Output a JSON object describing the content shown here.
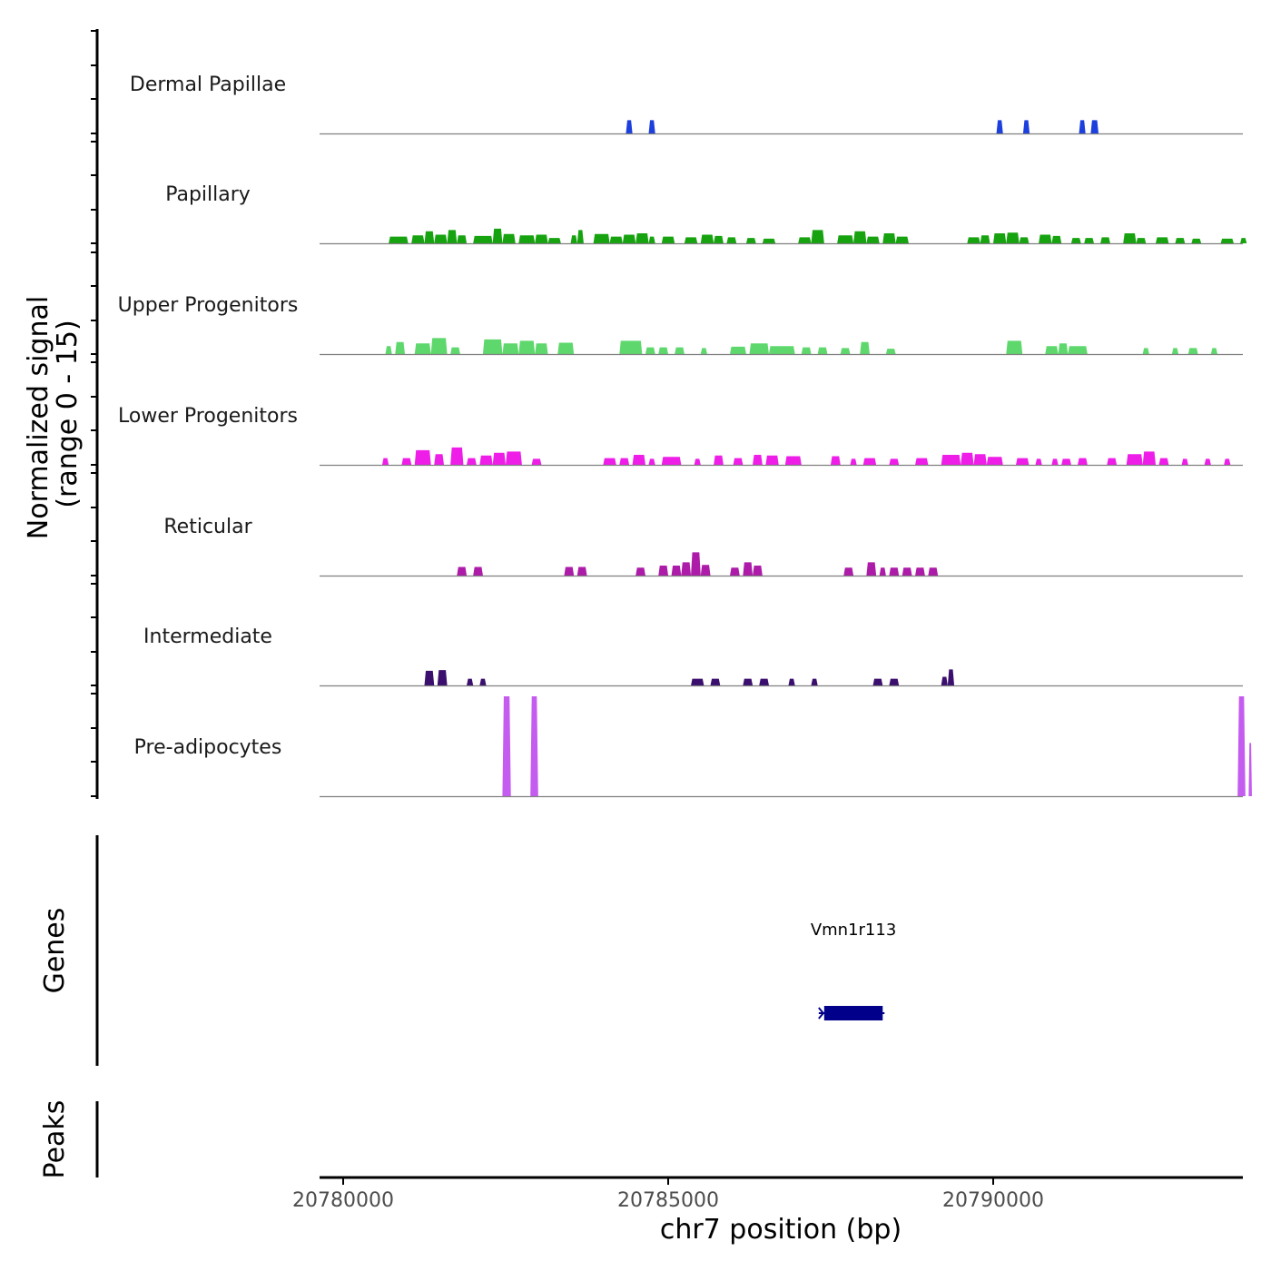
{
  "chart_data": {
    "type": "area",
    "title": "",
    "chromosome": "chr7",
    "xlabel": "chr7 position (bp)",
    "ylabel_line1": "Normalized signal",
    "ylabel_line2": "(range 0 - 15)",
    "signal_range": [
      0,
      15
    ],
    "xlim": [
      20780000,
      20794300
    ],
    "x_ticks": [
      20780000,
      20785000,
      20790000
    ],
    "x_tick_labels": [
      "20780000",
      "20785000",
      "20790000"
    ],
    "panels": {
      "genes_label": "Genes",
      "peaks_label": "Peaks"
    },
    "tracks": [
      {
        "name": "Dermal Papillae",
        "color": "#1c3fdd",
        "peaks": [
          [
            20784350,
            20784450,
            2.0
          ],
          [
            20784700,
            20784800,
            2.0
          ],
          [
            20790050,
            20790150,
            2.0
          ],
          [
            20790460,
            20790560,
            2.0
          ],
          [
            20791320,
            20791420,
            2.0
          ],
          [
            20791500,
            20791620,
            2.0
          ]
        ]
      },
      {
        "name": "Papillary",
        "color": "#16a30f",
        "peaks": [
          [
            20780700,
            20781000,
            1.0
          ],
          [
            20781050,
            20781250,
            1.2
          ],
          [
            20781250,
            20781400,
            1.8
          ],
          [
            20781400,
            20781600,
            1.3
          ],
          [
            20781600,
            20781750,
            2.0
          ],
          [
            20781750,
            20781900,
            1.2
          ],
          [
            20782000,
            20782300,
            1.1
          ],
          [
            20782300,
            20782450,
            2.2
          ],
          [
            20782450,
            20782650,
            1.4
          ],
          [
            20782700,
            20782950,
            1.2
          ],
          [
            20782950,
            20783150,
            1.3
          ],
          [
            20783150,
            20783350,
            0.8
          ],
          [
            20783500,
            20783600,
            1.2
          ],
          [
            20783600,
            20783700,
            2.0
          ],
          [
            20783850,
            20784100,
            1.4
          ],
          [
            20784100,
            20784300,
            1.0
          ],
          [
            20784300,
            20784500,
            1.3
          ],
          [
            20784500,
            20784700,
            1.5
          ],
          [
            20784700,
            20784800,
            1.0
          ],
          [
            20784900,
            20785100,
            1.0
          ],
          [
            20785250,
            20785450,
            0.9
          ],
          [
            20785500,
            20785700,
            1.3
          ],
          [
            20785700,
            20785850,
            1.1
          ],
          [
            20785900,
            20786050,
            0.9
          ],
          [
            20786200,
            20786350,
            0.8
          ],
          [
            20786450,
            20786650,
            0.7
          ],
          [
            20787000,
            20787200,
            0.9
          ],
          [
            20787200,
            20787400,
            2.0
          ],
          [
            20787600,
            20787850,
            1.2
          ],
          [
            20787850,
            20788050,
            1.8
          ],
          [
            20788050,
            20788250,
            1.0
          ],
          [
            20788300,
            20788500,
            1.5
          ],
          [
            20788500,
            20788700,
            1.0
          ],
          [
            20789600,
            20789800,
            0.9
          ],
          [
            20789800,
            20789950,
            1.2
          ],
          [
            20790000,
            20790200,
            1.5
          ],
          [
            20790200,
            20790400,
            1.6
          ],
          [
            20790400,
            20790550,
            0.9
          ],
          [
            20790700,
            20790900,
            1.3
          ],
          [
            20790900,
            20791050,
            1.1
          ],
          [
            20791200,
            20791350,
            0.8
          ],
          [
            20791400,
            20791550,
            0.8
          ],
          [
            20791650,
            20791800,
            0.9
          ],
          [
            20792000,
            20792200,
            1.5
          ],
          [
            20792200,
            20792350,
            0.8
          ],
          [
            20792500,
            20792700,
            0.9
          ],
          [
            20792800,
            20792950,
            0.8
          ],
          [
            20793050,
            20793200,
            0.7
          ],
          [
            20793500,
            20793700,
            0.7
          ],
          [
            20793800,
            20793900,
            0.8
          ]
        ]
      },
      {
        "name": "Upper Progenitors",
        "color": "#5ed86c",
        "peaks": [
          [
            20780650,
            20780750,
            1.2
          ],
          [
            20780800,
            20780950,
            1.8
          ],
          [
            20781100,
            20781350,
            1.6
          ],
          [
            20781350,
            20781600,
            2.4
          ],
          [
            20781650,
            20781800,
            1.0
          ],
          [
            20782150,
            20782450,
            2.2
          ],
          [
            20782450,
            20782700,
            1.6
          ],
          [
            20782700,
            20782950,
            2.0
          ],
          [
            20782950,
            20783150,
            1.6
          ],
          [
            20783300,
            20783550,
            1.7
          ],
          [
            20784250,
            20784600,
            2.0
          ],
          [
            20784650,
            20784800,
            1.0
          ],
          [
            20784850,
            20785000,
            1.0
          ],
          [
            20785100,
            20785250,
            1.0
          ],
          [
            20785500,
            20785600,
            0.9
          ],
          [
            20785950,
            20786200,
            1.1
          ],
          [
            20786250,
            20786550,
            1.6
          ],
          [
            20786550,
            20786950,
            1.2
          ],
          [
            20787050,
            20787200,
            1.0
          ],
          [
            20787300,
            20787450,
            1.0
          ],
          [
            20787650,
            20787800,
            0.9
          ],
          [
            20787950,
            20788100,
            1.8
          ],
          [
            20788350,
            20788500,
            0.8
          ],
          [
            20790200,
            20790450,
            2.0
          ],
          [
            20790800,
            20791000,
            1.2
          ],
          [
            20791000,
            20791150,
            1.6
          ],
          [
            20791150,
            20791450,
            1.2
          ],
          [
            20792300,
            20792400,
            0.9
          ],
          [
            20792750,
            20792850,
            0.9
          ],
          [
            20793000,
            20793150,
            0.9
          ],
          [
            20793350,
            20793450,
            0.9
          ]
        ]
      },
      {
        "name": "Lower Progenitors",
        "color": "#ee1ee8",
        "peaks": [
          [
            20780600,
            20780700,
            1.0
          ],
          [
            20780900,
            20781050,
            1.0
          ],
          [
            20781100,
            20781350,
            2.2
          ],
          [
            20781400,
            20781550,
            1.6
          ],
          [
            20781650,
            20781850,
            2.6
          ],
          [
            20781900,
            20782050,
            1.0
          ],
          [
            20782100,
            20782300,
            1.4
          ],
          [
            20782300,
            20782500,
            1.8
          ],
          [
            20782500,
            20782750,
            2.0
          ],
          [
            20782900,
            20783050,
            0.9
          ],
          [
            20784000,
            20784200,
            1.0
          ],
          [
            20784250,
            20784400,
            1.0
          ],
          [
            20784450,
            20784650,
            1.5
          ],
          [
            20784700,
            20784800,
            0.9
          ],
          [
            20784900,
            20785200,
            1.2
          ],
          [
            20785400,
            20785500,
            0.9
          ],
          [
            20785700,
            20785850,
            1.4
          ],
          [
            20786000,
            20786150,
            1.0
          ],
          [
            20786300,
            20786450,
            1.5
          ],
          [
            20786500,
            20786700,
            1.4
          ],
          [
            20786800,
            20787050,
            1.3
          ],
          [
            20787500,
            20787650,
            1.3
          ],
          [
            20787800,
            20787900,
            0.9
          ],
          [
            20788000,
            20788200,
            1.0
          ],
          [
            20788400,
            20788550,
            0.9
          ],
          [
            20788800,
            20789000,
            1.0
          ],
          [
            20789200,
            20789500,
            1.5
          ],
          [
            20789500,
            20789700,
            1.8
          ],
          [
            20789700,
            20789900,
            1.6
          ],
          [
            20789900,
            20790150,
            1.2
          ],
          [
            20790350,
            20790550,
            1.0
          ],
          [
            20790650,
            20790750,
            0.9
          ],
          [
            20790900,
            20791000,
            0.9
          ],
          [
            20791050,
            20791200,
            0.9
          ],
          [
            20791300,
            20791450,
            1.0
          ],
          [
            20791750,
            20791900,
            1.0
          ],
          [
            20792050,
            20792300,
            1.6
          ],
          [
            20792300,
            20792500,
            2.0
          ],
          [
            20792550,
            20792700,
            1.0
          ],
          [
            20792900,
            20793000,
            0.9
          ],
          [
            20793250,
            20793350,
            0.9
          ],
          [
            20793550,
            20793650,
            0.9
          ]
        ]
      },
      {
        "name": "Reticular",
        "color": "#ad1ba9",
        "peaks": [
          [
            20781750,
            20781900,
            1.3
          ],
          [
            20782000,
            20782150,
            1.3
          ],
          [
            20783400,
            20783550,
            1.3
          ],
          [
            20783600,
            20783750,
            1.3
          ],
          [
            20784500,
            20784650,
            1.2
          ],
          [
            20784850,
            20785000,
            1.5
          ],
          [
            20785050,
            20785200,
            1.5
          ],
          [
            20785200,
            20785350,
            2.0
          ],
          [
            20785350,
            20785500,
            3.5
          ],
          [
            20785500,
            20785650,
            1.6
          ],
          [
            20785950,
            20786100,
            1.2
          ],
          [
            20786150,
            20786300,
            2.0
          ],
          [
            20786300,
            20786450,
            1.5
          ],
          [
            20787700,
            20787850,
            1.2
          ],
          [
            20788050,
            20788200,
            2.0
          ],
          [
            20788250,
            20788350,
            1.2
          ],
          [
            20788400,
            20788550,
            1.2
          ],
          [
            20788600,
            20788750,
            1.2
          ],
          [
            20788800,
            20788950,
            1.2
          ],
          [
            20789000,
            20789150,
            1.2
          ]
        ]
      },
      {
        "name": "Intermediate",
        "color": "#3b0f6e",
        "peaks": [
          [
            20781250,
            20781400,
            2.2
          ],
          [
            20781450,
            20781600,
            2.3
          ],
          [
            20781900,
            20782000,
            1.0
          ],
          [
            20782100,
            20782200,
            1.0
          ],
          [
            20785350,
            20785550,
            1.0
          ],
          [
            20785650,
            20785800,
            1.0
          ],
          [
            20786150,
            20786300,
            1.0
          ],
          [
            20786400,
            20786550,
            1.0
          ],
          [
            20786850,
            20786950,
            1.0
          ],
          [
            20787200,
            20787300,
            1.0
          ],
          [
            20788150,
            20788300,
            1.0
          ],
          [
            20788400,
            20788550,
            1.0
          ],
          [
            20789200,
            20789300,
            1.3
          ],
          [
            20789300,
            20789400,
            2.4
          ]
        ]
      },
      {
        "name": "Pre-adipocytes",
        "color": "#c45cf0",
        "peaks": [
          [
            20782450,
            20782580,
            15.0
          ],
          [
            20782880,
            20783000,
            15.0
          ],
          [
            20793760,
            20793880,
            15.0
          ],
          [
            20793930,
            20793980,
            8.0
          ]
        ]
      }
    ],
    "genes": [
      {
        "name": "Vmn1r113",
        "start": 20787400,
        "end": 20788300,
        "strand": "-",
        "color": "#00008b"
      }
    ]
  }
}
